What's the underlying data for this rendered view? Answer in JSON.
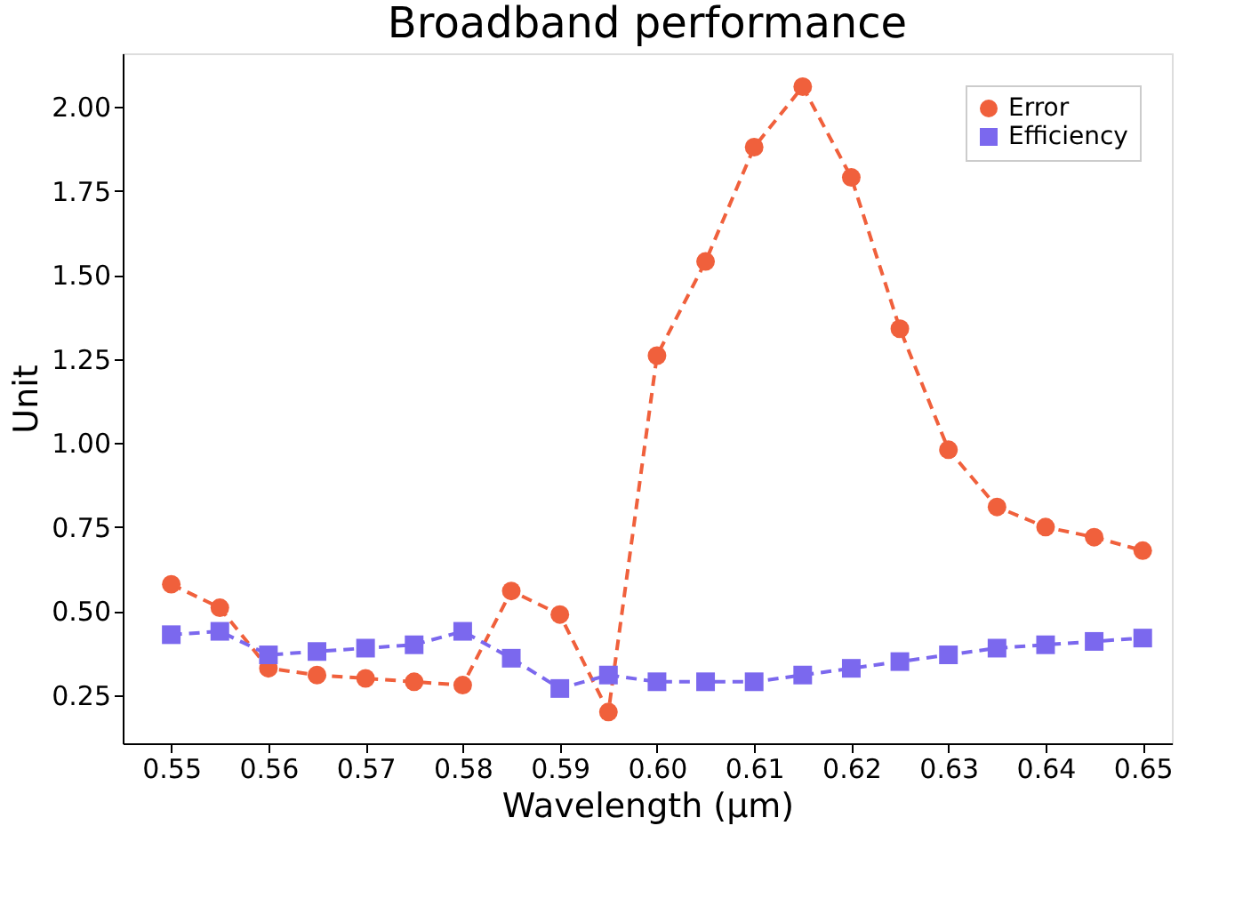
{
  "chart_data": {
    "type": "line",
    "title": "Broadband performance",
    "xlabel": "Wavelength (μm)",
    "ylabel": "Unit",
    "x": [
      0.55,
      0.555,
      0.56,
      0.565,
      0.57,
      0.575,
      0.58,
      0.585,
      0.59,
      0.595,
      0.6,
      0.605,
      0.61,
      0.615,
      0.62,
      0.625,
      0.63,
      0.635,
      0.64,
      0.645,
      0.65
    ],
    "series": [
      {
        "name": "Error",
        "color": "#f0603c",
        "marker": "circle",
        "values": [
          0.58,
          0.51,
          0.33,
          0.31,
          0.3,
          0.29,
          0.28,
          0.56,
          0.49,
          0.2,
          1.26,
          1.54,
          1.88,
          2.06,
          1.79,
          1.34,
          0.98,
          0.81,
          0.75,
          0.72,
          0.68
        ]
      },
      {
        "name": "Efficiency",
        "color": "#7b68ee",
        "marker": "square",
        "values": [
          0.43,
          0.44,
          0.37,
          0.38,
          0.39,
          0.4,
          0.44,
          0.36,
          0.27,
          0.31,
          0.29,
          0.29,
          0.29,
          0.31,
          0.33,
          0.35,
          0.37,
          0.39,
          0.4,
          0.41,
          0.42
        ]
      }
    ],
    "xlim": [
      0.545,
      0.653
    ],
    "xticks": [
      {
        "value": 0.55,
        "label": "0.55"
      },
      {
        "value": 0.56,
        "label": "0.56"
      },
      {
        "value": 0.57,
        "label": "0.57"
      },
      {
        "value": 0.58,
        "label": "0.58"
      },
      {
        "value": 0.59,
        "label": "0.59"
      },
      {
        "value": 0.6,
        "label": "0.60"
      },
      {
        "value": 0.61,
        "label": "0.61"
      },
      {
        "value": 0.62,
        "label": "0.62"
      },
      {
        "value": 0.63,
        "label": "0.63"
      },
      {
        "value": 0.64,
        "label": "0.64"
      },
      {
        "value": 0.65,
        "label": "0.65"
      }
    ],
    "ylim": [
      0.107,
      2.159
    ],
    "yticks": [
      {
        "value": 0.25,
        "label": "0.25"
      },
      {
        "value": 0.5,
        "label": "0.50"
      },
      {
        "value": 0.75,
        "label": "0.75"
      },
      {
        "value": 1.0,
        "label": "1.00"
      },
      {
        "value": 1.25,
        "label": "1.25"
      },
      {
        "value": 1.5,
        "label": "1.50"
      },
      {
        "value": 1.75,
        "label": "1.75"
      },
      {
        "value": 2.0,
        "label": "2.00"
      }
    ],
    "grid": false,
    "legend": "top right",
    "line_style": "dashed"
  }
}
